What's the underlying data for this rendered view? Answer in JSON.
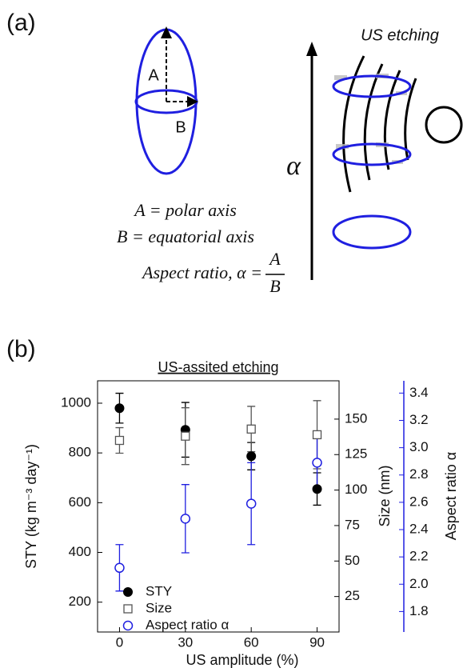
{
  "panel_a": {
    "label": "(a)",
    "axis_a": "A",
    "axis_b": "B",
    "eq1": "A = polar axis",
    "eq2": "B = equatorial axis",
    "eq3": "Aspect ratio, α =",
    "frac_num": "A",
    "frac_den": "B",
    "alpha": "α",
    "etching": "US etching"
  },
  "panel_b_label": "(b)",
  "chart_data": {
    "type": "scatter",
    "title": "US-assited etching",
    "x_label": "US amplitude (%)",
    "y_label": "STY (kg m⁻³ day⁻¹)",
    "y2_label": "Size (nm)",
    "y3_label": "Aspect ratio α",
    "x": [
      0,
      30,
      60,
      90
    ],
    "xlim": [
      -10,
      100
    ],
    "xticks": [
      0,
      30,
      60,
      90
    ],
    "ylim": [
      80,
      1090
    ],
    "yticks": [
      200,
      400,
      600,
      800,
      1000
    ],
    "y2lim": [
      0,
      177
    ],
    "y2ticks": [
      25,
      50,
      75,
      100,
      125,
      150
    ],
    "y3lim": [
      1.65,
      3.49
    ],
    "y3ticks": [
      1.8,
      {
        "value": 2,
        "label": "2.0"
      },
      2.2,
      2.4,
      2.6,
      2.8,
      {
        "value": 3,
        "label": "3.0"
      },
      3.2,
      3.4
    ],
    "y3_color": "#1f1fe0",
    "legend": "lower left",
    "series": [
      {
        "name": "STY",
        "color": "#000000",
        "marker": "filled-circle",
        "values": [
          980,
          893,
          787,
          655
        ],
        "errors": [
          60,
          110,
          55,
          65
        ]
      },
      {
        "name": "Size",
        "color": "#555555",
        "marker": "open-square",
        "axis": "y2",
        "values": [
          135,
          138,
          143,
          139
        ],
        "errors": [
          9,
          20,
          16,
          24
        ]
      },
      {
        "name": "Aspect ratio α",
        "color": "#1f1fe0",
        "marker": "open-circle",
        "axis": "y3",
        "values": [
          2.12,
          2.48,
          2.59,
          2.89
        ],
        "errors": [
          0.17,
          0.25,
          0.3,
          0.18
        ]
      }
    ]
  }
}
